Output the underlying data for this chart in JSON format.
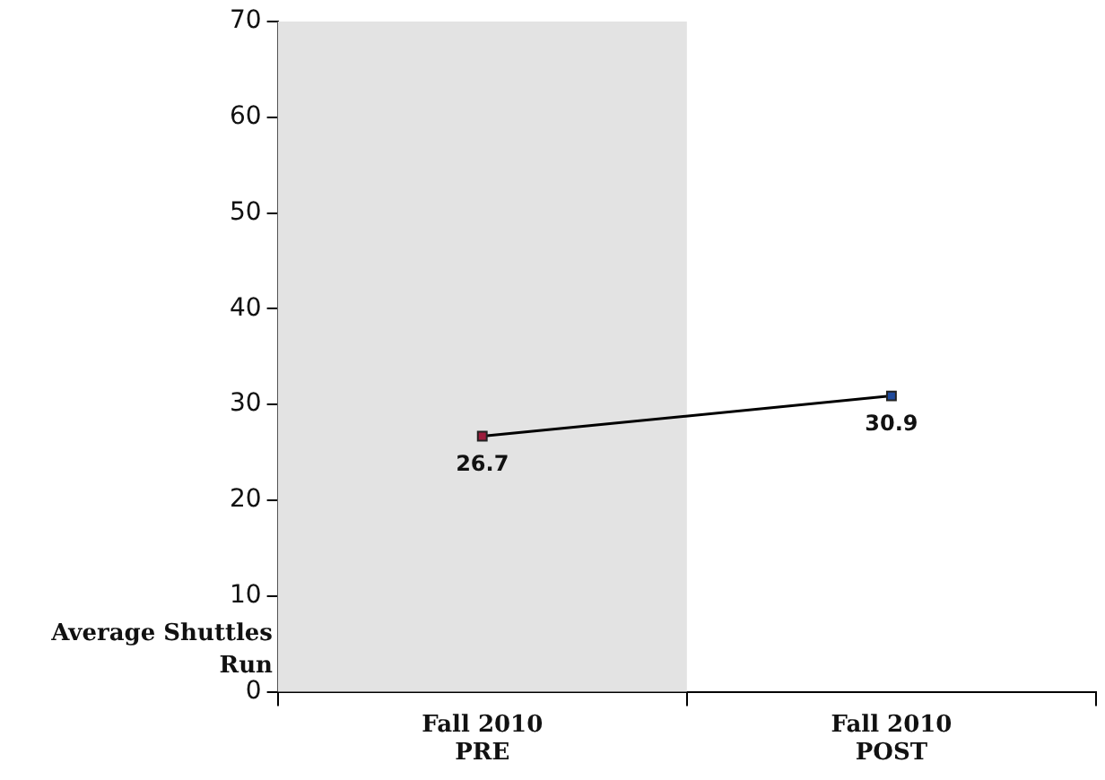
{
  "chart_data": {
    "type": "line",
    "ylabel": "Average Shuttles Run",
    "categories": [
      "Fall 2010\nPRE",
      "Fall 2010\nPOST"
    ],
    "series": [
      {
        "color": "#000000",
        "colors": [
          "#9c1c3c",
          "#1f4a9c"
        ],
        "values": [
          26.7,
          30.9
        ]
      }
    ],
    "ylim": [
      0,
      70
    ],
    "yticks": [
      0,
      10,
      20,
      30,
      40,
      50,
      60,
      70
    ],
    "bands": [
      {
        "axis": "x",
        "from": "Fall 2010\nPRE",
        "to": "Fall 2010\nPRE",
        "color": "#e3e3e3"
      }
    ],
    "grid": false,
    "legend": false,
    "marker": "square",
    "line_style": "solid",
    "data_labels": true
  }
}
